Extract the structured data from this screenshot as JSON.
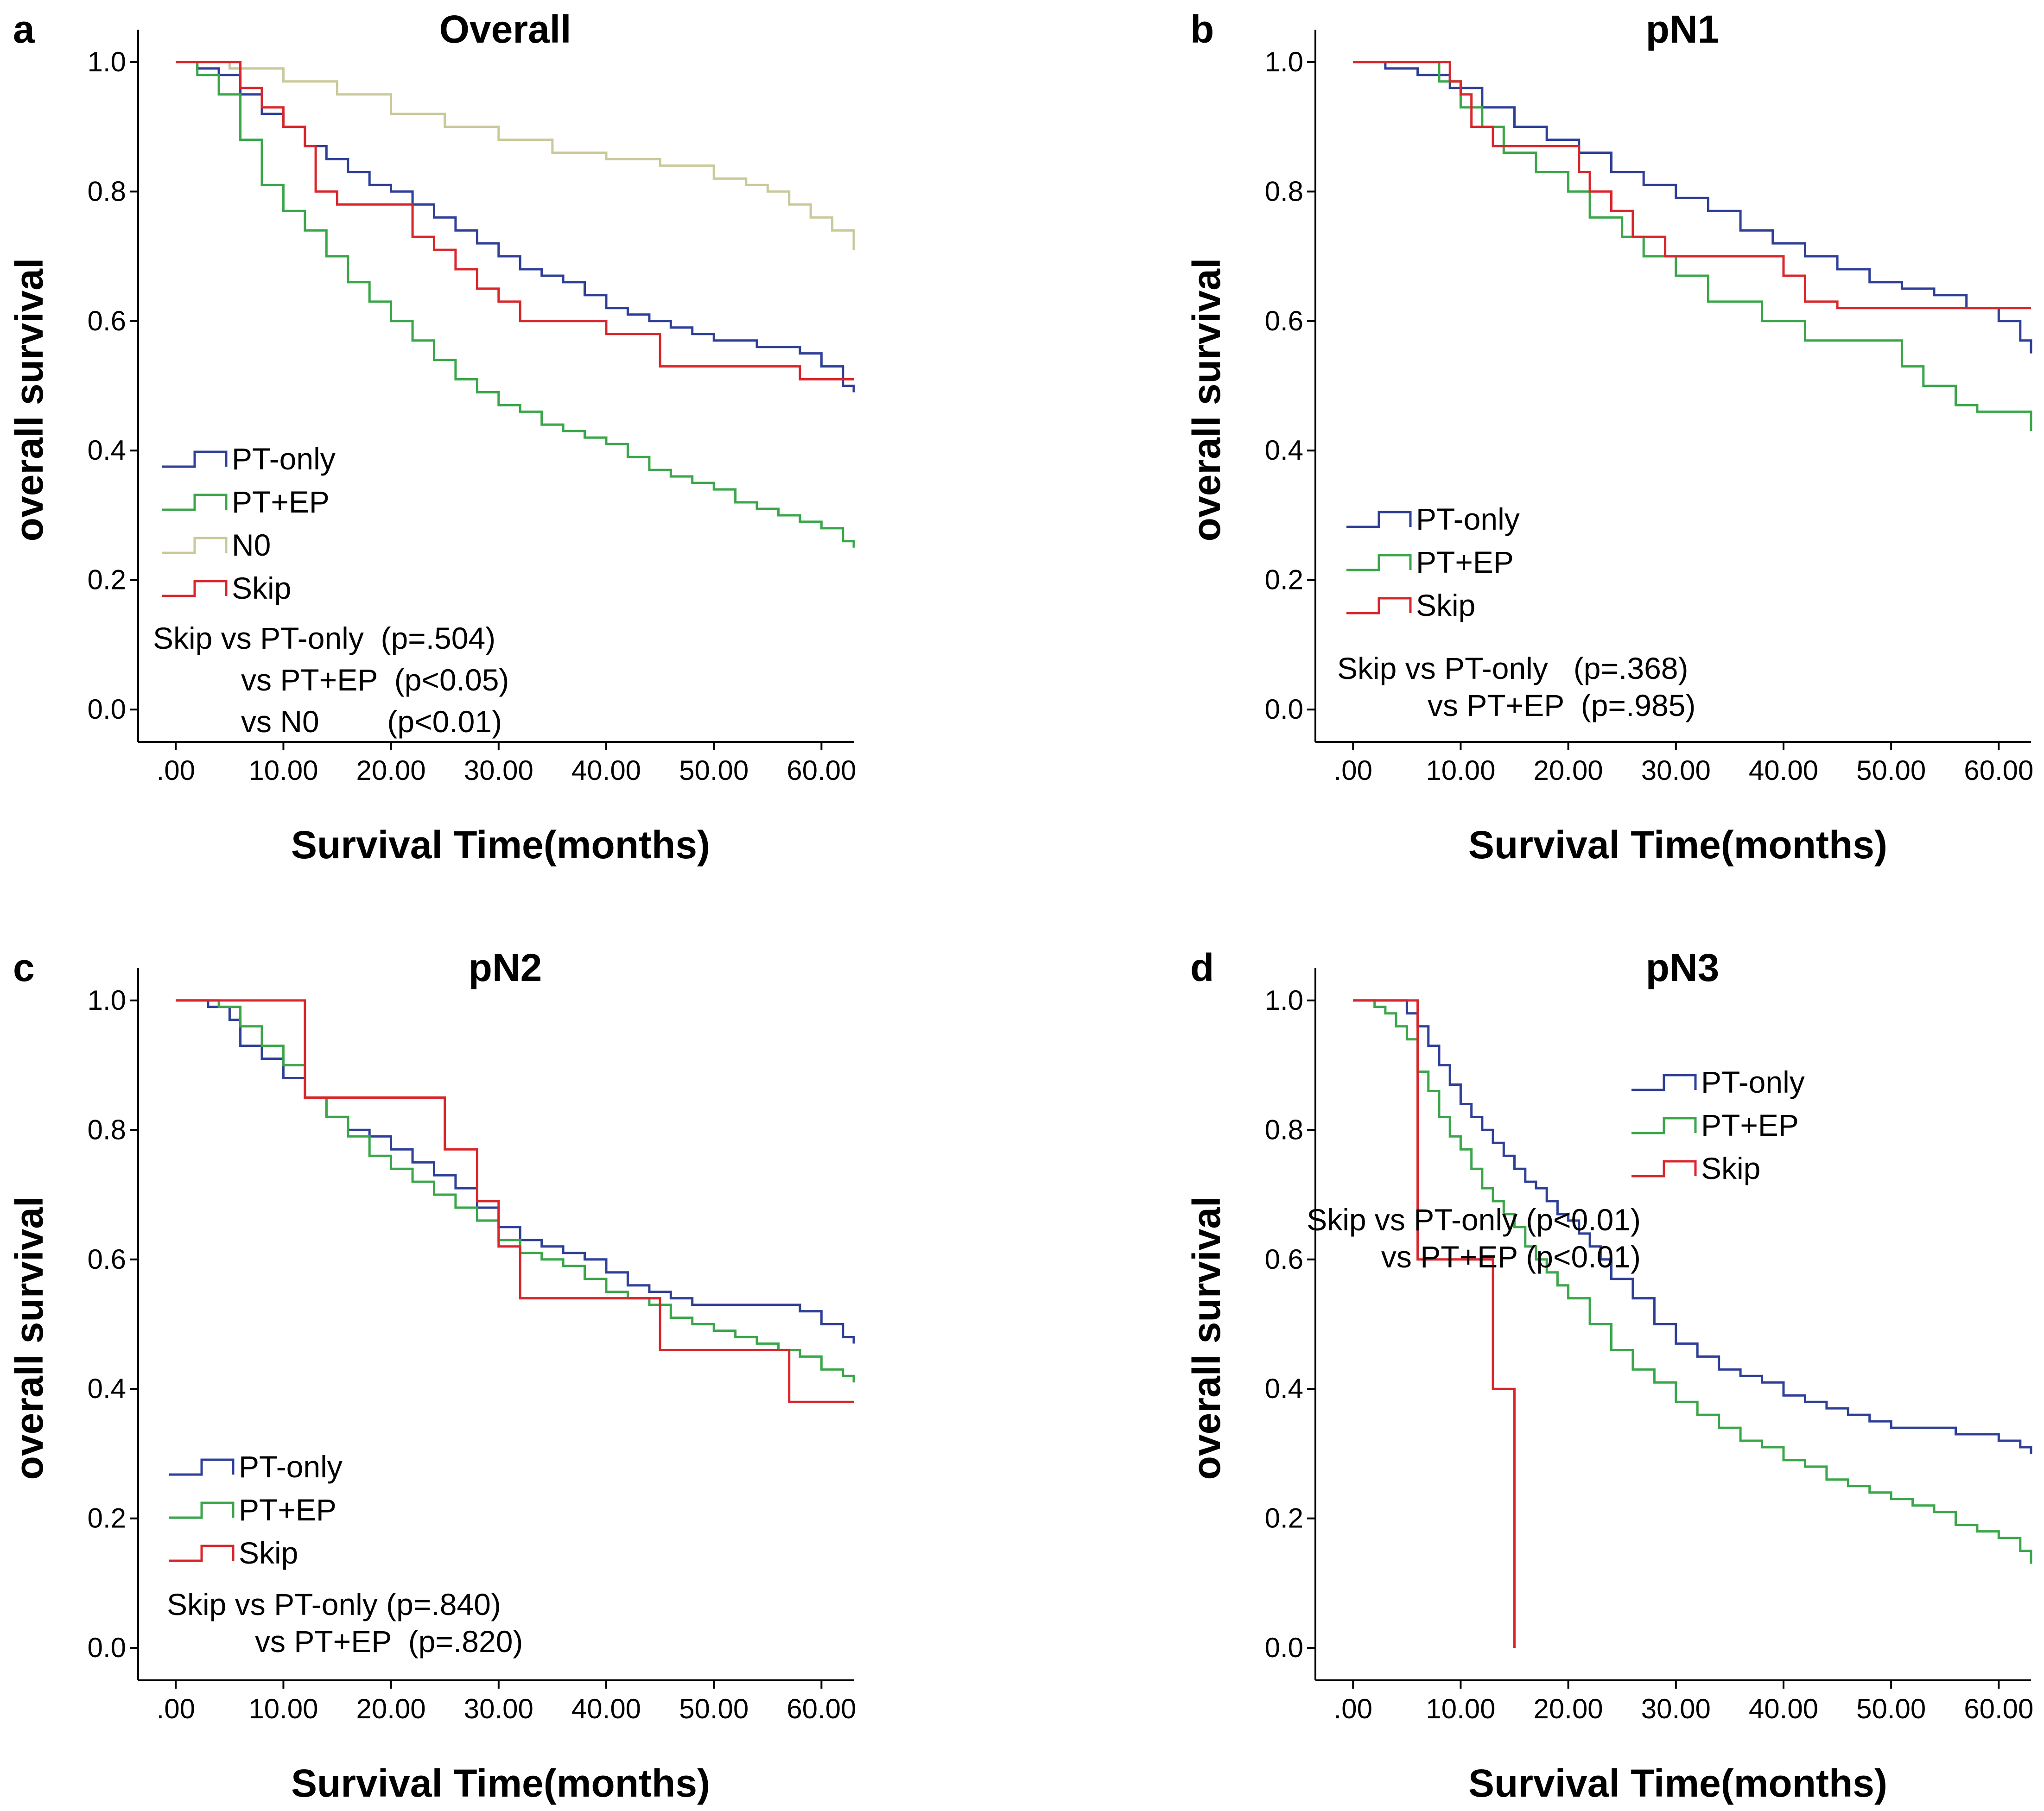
{
  "figure": {
    "x_axis_label": "Survival Time(months)",
    "y_axis_label": "overall survival",
    "x_ticks": [
      ".00",
      "10.00",
      "20.00",
      "30.00",
      "40.00",
      "50.00",
      "60.00"
    ],
    "y_ticks": [
      "0.0",
      "0.2",
      "0.4",
      "0.6",
      "0.8",
      "1.0"
    ]
  },
  "colors": {
    "PT-only": "#2e3f98",
    "PT+EP": "#3aa64a",
    "N0": "#c9c99a",
    "Skip": "#d8262b"
  },
  "chart_data": [
    {
      "panel": "a",
      "type": "line",
      "step": true,
      "title": "Overall",
      "xlabel": "Survival Time(months)",
      "ylabel": "overall survival",
      "xlim": [
        -3.5,
        63
      ],
      "ylim": [
        -0.05,
        1.05
      ],
      "xticks": [
        0,
        10,
        20,
        30,
        40,
        50,
        60
      ],
      "yticks": [
        0,
        0.2,
        0.4,
        0.6,
        0.8,
        1.0
      ],
      "legend": [
        "PT-only",
        "PT+EP",
        "N0",
        "Skip"
      ],
      "legend_position": "lower-left",
      "annotations": [
        "Skip vs PT-only  (p=.504)",
        "vs PT+EP  (p<0.05)",
        "vs N0        (p<0.01)"
      ],
      "series": [
        {
          "name": "PT-only",
          "x": [
            0,
            2,
            4,
            6,
            8,
            10,
            12,
            14,
            16,
            18,
            20,
            22,
            24,
            26,
            28,
            30,
            32,
            34,
            36,
            38,
            40,
            42,
            44,
            46,
            48,
            50,
            52,
            54,
            56,
            58,
            60,
            62,
            63
          ],
          "y": [
            1,
            0.99,
            0.98,
            0.95,
            0.92,
            0.9,
            0.87,
            0.85,
            0.83,
            0.81,
            0.8,
            0.78,
            0.76,
            0.74,
            0.72,
            0.7,
            0.68,
            0.67,
            0.66,
            0.64,
            0.62,
            0.61,
            0.6,
            0.59,
            0.58,
            0.57,
            0.57,
            0.56,
            0.56,
            0.55,
            0.53,
            0.5,
            0.49
          ]
        },
        {
          "name": "PT+EP",
          "x": [
            0,
            2,
            4,
            6,
            8,
            10,
            12,
            14,
            16,
            18,
            20,
            22,
            24,
            26,
            28,
            30,
            32,
            34,
            36,
            38,
            40,
            42,
            44,
            46,
            48,
            50,
            52,
            54,
            56,
            58,
            60,
            62,
            63
          ],
          "y": [
            1,
            0.98,
            0.95,
            0.88,
            0.81,
            0.77,
            0.74,
            0.7,
            0.66,
            0.63,
            0.6,
            0.57,
            0.54,
            0.51,
            0.49,
            0.47,
            0.46,
            0.44,
            0.43,
            0.42,
            0.41,
            0.39,
            0.37,
            0.36,
            0.35,
            0.34,
            0.32,
            0.31,
            0.3,
            0.29,
            0.28,
            0.26,
            0.25
          ]
        },
        {
          "name": "N0",
          "x": [
            0,
            5,
            10,
            15,
            20,
            25,
            30,
            35,
            40,
            45,
            50,
            53,
            55,
            57,
            59,
            61,
            63
          ],
          "y": [
            1,
            0.99,
            0.97,
            0.95,
            0.92,
            0.9,
            0.88,
            0.86,
            0.85,
            0.84,
            0.82,
            0.81,
            0.8,
            0.78,
            0.76,
            0.74,
            0.71
          ]
        },
        {
          "name": "Skip",
          "x": [
            0,
            6,
            8,
            10,
            12,
            13,
            15,
            18,
            22,
            24,
            26,
            28,
            30,
            32,
            40,
            45,
            50,
            55,
            58,
            63
          ],
          "y": [
            1,
            0.96,
            0.93,
            0.9,
            0.87,
            0.8,
            0.78,
            0.78,
            0.73,
            0.71,
            0.68,
            0.65,
            0.63,
            0.6,
            0.58,
            0.53,
            0.53,
            0.53,
            0.51,
            0.51
          ]
        }
      ]
    },
    {
      "panel": "b",
      "type": "line",
      "step": true,
      "title": "pN1",
      "xlabel": "Survival Time(months)",
      "ylabel": "overall survival",
      "xlim": [
        -3.5,
        63
      ],
      "ylim": [
        -0.05,
        1.05
      ],
      "xticks": [
        0,
        10,
        20,
        30,
        40,
        50,
        60
      ],
      "yticks": [
        0,
        0.2,
        0.4,
        0.6,
        0.8,
        1.0
      ],
      "legend": [
        "PT-only",
        "PT+EP",
        "Skip"
      ],
      "legend_position": "lower-left",
      "annotations": [
        "Skip vs PT-only   (p=.368)",
        "vs PT+EP  (p=.985)"
      ],
      "series": [
        {
          "name": "PT-only",
          "x": [
            0,
            3,
            6,
            9,
            12,
            15,
            18,
            21,
            24,
            27,
            30,
            33,
            36,
            39,
            42,
            45,
            48,
            51,
            54,
            57,
            60,
            62,
            63
          ],
          "y": [
            1,
            0.99,
            0.98,
            0.96,
            0.93,
            0.9,
            0.88,
            0.86,
            0.83,
            0.81,
            0.79,
            0.77,
            0.74,
            0.72,
            0.7,
            0.68,
            0.66,
            0.65,
            0.64,
            0.62,
            0.6,
            0.57,
            0.55
          ]
        },
        {
          "name": "PT+EP",
          "x": [
            0,
            8,
            10,
            12,
            14,
            17,
            20,
            22,
            25,
            27,
            30,
            33,
            38,
            42,
            46,
            51,
            53,
            56,
            58,
            62,
            63
          ],
          "y": [
            1,
            0.97,
            0.93,
            0.9,
            0.86,
            0.83,
            0.8,
            0.76,
            0.73,
            0.7,
            0.67,
            0.63,
            0.6,
            0.57,
            0.57,
            0.53,
            0.5,
            0.47,
            0.46,
            0.46,
            0.43
          ]
        },
        {
          "name": "Skip",
          "x": [
            0,
            9,
            10,
            11,
            13,
            15,
            18,
            20,
            21,
            22,
            24,
            26,
            29,
            35,
            40,
            42,
            45,
            50,
            55,
            63
          ],
          "y": [
            1,
            0.97,
            0.95,
            0.9,
            0.87,
            0.87,
            0.87,
            0.87,
            0.83,
            0.8,
            0.77,
            0.73,
            0.7,
            0.7,
            0.67,
            0.63,
            0.62,
            0.62,
            0.62,
            0.62
          ]
        }
      ]
    },
    {
      "panel": "c",
      "type": "line",
      "step": true,
      "title": "pN2",
      "xlabel": "Survival Time(months)",
      "ylabel": "overall survival",
      "xlim": [
        -3.5,
        63
      ],
      "ylim": [
        -0.05,
        1.05
      ],
      "xticks": [
        0,
        10,
        20,
        30,
        40,
        50,
        60
      ],
      "yticks": [
        0,
        0.2,
        0.4,
        0.6,
        0.8,
        1.0
      ],
      "legend": [
        "PT-only",
        "PT+EP",
        "Skip"
      ],
      "legend_position": "lower-left",
      "annotations": [
        "Skip vs PT-only (p=.840)",
        "vs PT+EP  (p=.820)"
      ],
      "series": [
        {
          "name": "PT-only",
          "x": [
            0,
            3,
            5,
            6,
            8,
            10,
            12,
            14,
            16,
            18,
            20,
            22,
            24,
            26,
            28,
            30,
            32,
            34,
            36,
            38,
            40,
            42,
            44,
            46,
            48,
            50,
            52,
            54,
            56,
            58,
            60,
            62,
            63
          ],
          "y": [
            1,
            0.99,
            0.97,
            0.93,
            0.91,
            0.88,
            0.85,
            0.82,
            0.8,
            0.79,
            0.77,
            0.75,
            0.73,
            0.71,
            0.68,
            0.65,
            0.63,
            0.62,
            0.61,
            0.6,
            0.58,
            0.56,
            0.55,
            0.54,
            0.53,
            0.53,
            0.53,
            0.53,
            0.53,
            0.52,
            0.5,
            0.48,
            0.47
          ]
        },
        {
          "name": "PT+EP",
          "x": [
            0,
            4,
            6,
            8,
            10,
            12,
            14,
            16,
            18,
            20,
            22,
            24,
            26,
            28,
            30,
            32,
            34,
            36,
            38,
            40,
            42,
            44,
            46,
            48,
            50,
            52,
            54,
            56,
            58,
            60,
            62,
            63
          ],
          "y": [
            1,
            0.99,
            0.96,
            0.93,
            0.9,
            0.85,
            0.82,
            0.79,
            0.76,
            0.74,
            0.72,
            0.7,
            0.68,
            0.66,
            0.63,
            0.61,
            0.6,
            0.59,
            0.57,
            0.55,
            0.54,
            0.53,
            0.51,
            0.5,
            0.49,
            0.48,
            0.47,
            0.46,
            0.45,
            0.43,
            0.42,
            0.41
          ]
        },
        {
          "name": "Skip",
          "x": [
            0,
            12,
            25,
            28,
            30,
            32,
            40,
            45,
            57,
            63
          ],
          "y": [
            1,
            0.85,
            0.77,
            0.69,
            0.62,
            0.54,
            0.54,
            0.46,
            0.38,
            0.38
          ]
        }
      ]
    },
    {
      "panel": "d",
      "type": "line",
      "step": true,
      "title": "pN3",
      "xlabel": "Survival Time(months)",
      "ylabel": "overall survival",
      "xlim": [
        -3.5,
        63
      ],
      "ylim": [
        -0.05,
        1.05
      ],
      "xticks": [
        0,
        10,
        20,
        30,
        40,
        50,
        60
      ],
      "yticks": [
        0,
        0.2,
        0.4,
        0.6,
        0.8,
        1.0
      ],
      "legend": [
        "PT-only",
        "PT+EP",
        "Skip"
      ],
      "legend_position": "upper-right",
      "annotations": [
        "Skip vs PT-only (p<0.01)",
        "vs PT+EP (p<0.01)"
      ],
      "series": [
        {
          "name": "PT-only",
          "x": [
            0,
            5,
            6,
            7,
            8,
            9,
            10,
            11,
            12,
            13,
            14,
            15,
            16,
            17,
            18,
            19,
            20,
            21,
            22,
            23,
            24,
            26,
            28,
            30,
            32,
            34,
            36,
            38,
            40,
            42,
            44,
            46,
            48,
            50,
            52,
            54,
            56,
            58,
            60,
            62,
            63
          ],
          "y": [
            1,
            0.98,
            0.96,
            0.93,
            0.9,
            0.87,
            0.84,
            0.82,
            0.8,
            0.78,
            0.76,
            0.74,
            0.72,
            0.71,
            0.69,
            0.67,
            0.66,
            0.64,
            0.62,
            0.6,
            0.57,
            0.54,
            0.5,
            0.47,
            0.45,
            0.43,
            0.42,
            0.41,
            0.39,
            0.38,
            0.37,
            0.36,
            0.35,
            0.34,
            0.34,
            0.34,
            0.33,
            0.33,
            0.32,
            0.31,
            0.3
          ]
        },
        {
          "name": "PT+EP",
          "x": [
            0,
            2,
            3,
            4,
            5,
            6,
            7,
            8,
            9,
            10,
            11,
            12,
            13,
            14,
            15,
            16,
            17,
            18,
            19,
            20,
            22,
            24,
            26,
            28,
            30,
            32,
            34,
            36,
            38,
            40,
            42,
            44,
            46,
            48,
            50,
            52,
            54,
            56,
            58,
            60,
            62,
            63
          ],
          "y": [
            1,
            0.99,
            0.98,
            0.96,
            0.94,
            0.89,
            0.86,
            0.82,
            0.79,
            0.77,
            0.74,
            0.71,
            0.69,
            0.67,
            0.65,
            0.62,
            0.6,
            0.58,
            0.56,
            0.54,
            0.5,
            0.46,
            0.43,
            0.41,
            0.38,
            0.36,
            0.34,
            0.32,
            0.31,
            0.29,
            0.28,
            0.26,
            0.25,
            0.24,
            0.23,
            0.22,
            0.21,
            0.19,
            0.18,
            0.17,
            0.15,
            0.13
          ]
        },
        {
          "name": "Skip",
          "x": [
            0,
            6,
            13,
            15
          ],
          "y": [
            1,
            0.6,
            0.4,
            0.0
          ]
        }
      ]
    }
  ]
}
